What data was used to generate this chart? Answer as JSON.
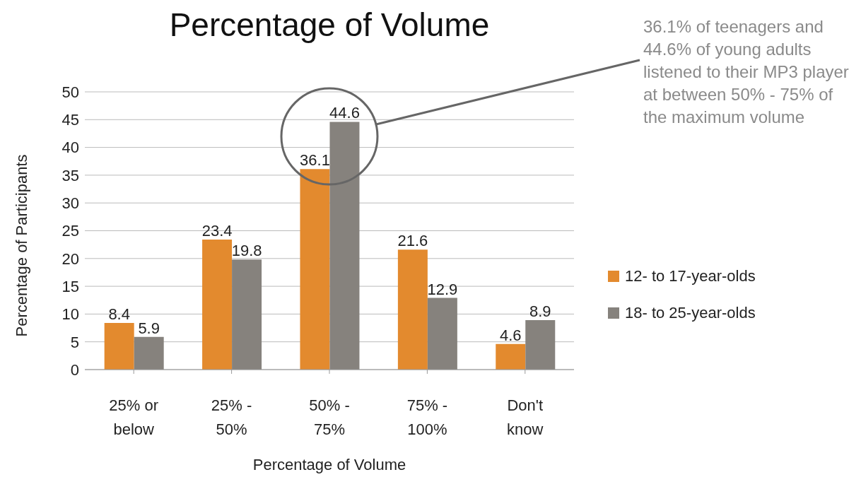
{
  "chart_data": {
    "type": "bar",
    "title": "Percentage of Volume",
    "xlabel": "Percentage of Volume",
    "ylabel": "Percentage of Participants",
    "categories": [
      "25% or below",
      "25% - 50%",
      "50% - 75%",
      "75% - 100%",
      "Don't know"
    ],
    "series": [
      {
        "name": "12- to 17-year-olds",
        "color": "#e38a2e",
        "values": [
          8.4,
          23.4,
          36.1,
          21.6,
          4.6
        ]
      },
      {
        "name": "18- to 25-year-olds",
        "color": "#86827d",
        "values": [
          5.9,
          19.8,
          44.6,
          12.9,
          8.9
        ]
      }
    ],
    "ylim": [
      0,
      50
    ],
    "yticks": [
      0,
      5,
      10,
      15,
      20,
      25,
      30,
      35,
      40,
      45,
      50
    ],
    "grid": "y",
    "legend": "right",
    "data_labels": true,
    "annotations": [
      "36.1% of teenagers and 44.6% of young adults listened to their MP3 player at between 50% - 75% of the maximum volume"
    ]
  }
}
